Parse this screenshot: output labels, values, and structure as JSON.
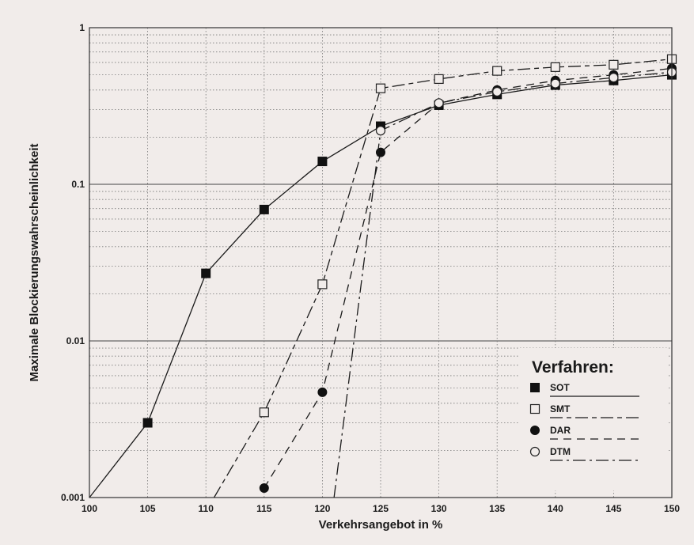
{
  "chart_data": {
    "type": "line",
    "title": "",
    "xlabel": "Verkehrsangebot in %",
    "ylabel": "Maximale Blockierungswahrscheinlichkeit",
    "xlim": [
      100,
      150
    ],
    "ylim": [
      0.001,
      1
    ],
    "y_scale": "log",
    "x_ticks": [
      "100",
      "105",
      "110",
      "115",
      "120",
      "125",
      "130",
      "135",
      "140",
      "145",
      "150"
    ],
    "y_ticks": [
      {
        "value": 1,
        "label": "1"
      },
      {
        "value": 0.1,
        "label": "0.1"
      },
      {
        "value": 0.01,
        "label": "0.01"
      },
      {
        "value": 0.001,
        "label": "0.001"
      }
    ],
    "grid": true,
    "legend": {
      "title": "Verfahren:",
      "position": "bottom-right"
    },
    "series": [
      {
        "name": "SOT",
        "marker": "filled-square",
        "dash": "solid",
        "x": [
          100,
          105,
          110,
          115,
          120,
          125,
          130,
          135,
          140,
          145,
          150
        ],
        "y": [
          0.001,
          0.003,
          0.027,
          0.069,
          0.14,
          0.235,
          0.32,
          0.375,
          0.43,
          0.46,
          0.5
        ]
      },
      {
        "name": "SMT",
        "marker": "open-square",
        "dash": "long-dash-short-dash",
        "x": [
          110.7,
          115,
          120,
          125,
          130,
          135,
          140,
          145,
          150
        ],
        "y": [
          0.001,
          0.0035,
          0.023,
          0.41,
          0.47,
          0.53,
          0.56,
          0.58,
          0.63
        ]
      },
      {
        "name": "DAR",
        "marker": "filled-circle",
        "dash": "dashed",
        "x": [
          115,
          120,
          125,
          130,
          135,
          140,
          145,
          150
        ],
        "y": [
          0.00115,
          0.0047,
          0.16,
          0.33,
          0.4,
          0.46,
          0.5,
          0.55
        ]
      },
      {
        "name": "DTM",
        "marker": "open-circle",
        "dash": "dash-dot",
        "x": [
          121,
          125,
          130,
          135,
          140,
          145,
          150
        ],
        "y": [
          0.001,
          0.22,
          0.33,
          0.39,
          0.44,
          0.48,
          0.52
        ]
      }
    ]
  }
}
